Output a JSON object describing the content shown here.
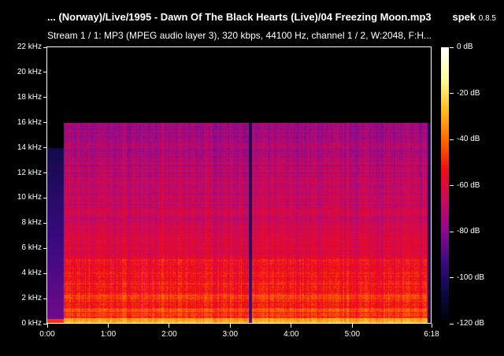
{
  "header": {
    "title": "... (Norway)/Live/1995 - Dawn Of The Black Hearts (Live)/04 Freezing Moon.mp3",
    "app_name": "spek",
    "app_version": "0.8.5",
    "stream_info": "Stream 1 / 1: MP3 (MPEG audio layer 3), 320 kbps, 44100 Hz, channel 1 / 2, W:2048, F:H..."
  },
  "chart_data": {
    "type": "heatmap",
    "x_axis": {
      "label": "",
      "range_seconds": [
        0,
        378
      ],
      "ticks": [
        "0:00",
        "1:00",
        "2:00",
        "3:00",
        "4:00",
        "5:00",
        "6:18"
      ],
      "tick_seconds": [
        0,
        60,
        120,
        180,
        240,
        300,
        378
      ]
    },
    "y_axis": {
      "label": "",
      "range_khz": [
        0,
        22
      ],
      "ticks": [
        "0 kHz",
        "2 kHz",
        "4 kHz",
        "6 kHz",
        "8 kHz",
        "10 kHz",
        "12 kHz",
        "14 kHz",
        "16 kHz",
        "18 kHz",
        "20 kHz",
        "22 kHz"
      ],
      "tick_khz": [
        0,
        2,
        4,
        6,
        8,
        10,
        12,
        14,
        16,
        18,
        20,
        22
      ]
    },
    "colorbar": {
      "range_db": [
        -120,
        0
      ],
      "ticks": [
        "0 dB",
        "-20 dB",
        "-40 dB",
        "-60 dB",
        "-80 dB",
        "-100 dB",
        "-120 dB"
      ],
      "tick_db": [
        0,
        -20,
        -40,
        -60,
        -80,
        -100,
        -120
      ]
    },
    "palette": [
      "#000000",
      "#0a0a40",
      "#3a0a80",
      "#8a0a90",
      "#c80a60",
      "#f00a1a",
      "#ff6a00",
      "#ffc020",
      "#ffffa0",
      "#ffffff"
    ],
    "lowpass_cutoff_khz": 16,
    "silent_gap_seconds": [
      198,
      201
    ]
  }
}
